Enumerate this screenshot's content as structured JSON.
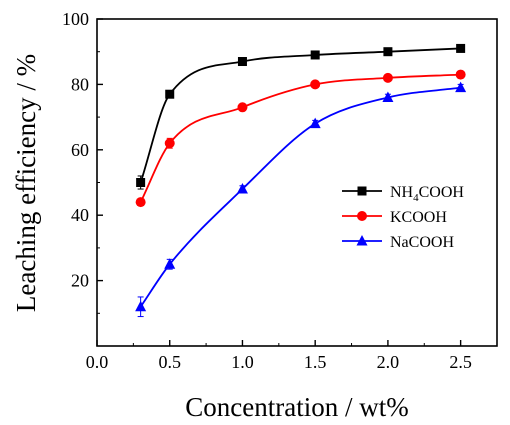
{
  "chart_data": {
    "type": "scatter",
    "xlabel": "Concentration / wt%",
    "ylabel": "Leaching efficiency / %",
    "xlim": [
      0.0,
      2.75
    ],
    "ylim": [
      0,
      100
    ],
    "xticks": [
      "0.0",
      "0.5",
      "1.0",
      "1.5",
      "2.0",
      "2.5"
    ],
    "yticks": [
      "20",
      "40",
      "60",
      "80",
      "100"
    ],
    "legend_position": "right-middle",
    "fitted_curves": true,
    "series": [
      {
        "name": "NH4COOH",
        "name_main": "NH",
        "name_sub": "4",
        "name_tail": "COOH",
        "color": "#000000",
        "marker": "square",
        "x": [
          0.3,
          0.5,
          1.0,
          1.5,
          2.0,
          2.5
        ],
        "y": [
          50,
          77,
          87,
          89,
          90,
          91
        ],
        "yerr": [
          2,
          1,
          1,
          1,
          1,
          1
        ]
      },
      {
        "name": "KCOOH",
        "color": "#ff0000",
        "marker": "circle",
        "x": [
          0.3,
          0.5,
          1.0,
          1.5,
          2.0,
          2.5
        ],
        "y": [
          44,
          62,
          73,
          80,
          82,
          83
        ],
        "yerr": [
          1,
          1.5,
          1,
          1,
          1,
          1
        ]
      },
      {
        "name": "NaCOOH",
        "color": "#0000ff",
        "marker": "triangle",
        "x": [
          0.3,
          0.5,
          1.0,
          1.5,
          2.0,
          2.5
        ],
        "y": [
          12,
          25,
          48,
          68,
          76,
          79
        ],
        "yerr": [
          3,
          1.5,
          1,
          1,
          1,
          1
        ]
      }
    ]
  }
}
